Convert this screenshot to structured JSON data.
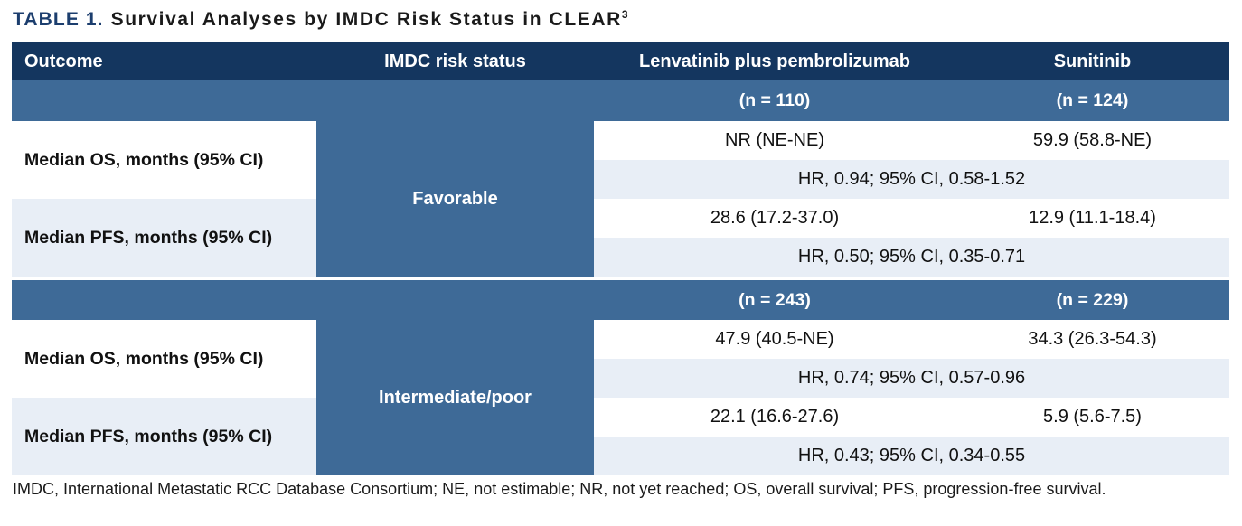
{
  "title": {
    "label": "TABLE 1.",
    "text": "Survival Analyses by IMDC Risk Status in CLEAR",
    "reference": "3"
  },
  "colors": {
    "header_navy": "#14365f",
    "band_steel_blue": "#3e6a97",
    "row_light_blue": "#e8eef6",
    "row_white": "#ffffff",
    "title_navy": "#1c3e6e",
    "text_black": "#111111"
  },
  "table": {
    "columns": [
      "Outcome",
      "IMDC risk status",
      "Lenvatinib plus pembrolizumab",
      "Sunitinib"
    ],
    "sections": [
      {
        "risk_status": "Favorable",
        "n_lenvatinib": "(n = 110)",
        "n_sunitinib": "(n = 124)",
        "rows": [
          {
            "outcome": "Median OS, months (95% CI)",
            "lenvatinib": "NR (NE-NE)",
            "sunitinib": "59.9 (58.8-NE)",
            "hr": "HR, 0.94; 95% CI, 0.58-1.52"
          },
          {
            "outcome": "Median PFS, months (95% CI)",
            "lenvatinib": "28.6 (17.2-37.0)",
            "sunitinib": "12.9 (11.1-18.4)",
            "hr": "HR, 0.50; 95% CI, 0.35-0.71"
          }
        ]
      },
      {
        "risk_status": "Intermediate/poor",
        "n_lenvatinib": "(n = 243)",
        "n_sunitinib": "(n = 229)",
        "rows": [
          {
            "outcome": "Median OS, months (95% CI)",
            "lenvatinib": "47.9 (40.5-NE)",
            "sunitinib": "34.3 (26.3-54.3)",
            "hr": "HR, 0.74; 95% CI, 0.57-0.96"
          },
          {
            "outcome": "Median PFS, months (95% CI)",
            "lenvatinib": "22.1 (16.6-27.6)",
            "sunitinib": "5.9 (5.6-7.5)",
            "hr": "HR, 0.43; 95% CI, 0.34-0.55"
          }
        ]
      }
    ]
  },
  "footnote": "IMDC, International Metastatic RCC Database Consortium; NE, not estimable; NR, not yet reached; OS, overall survival; PFS, progression-free survival."
}
